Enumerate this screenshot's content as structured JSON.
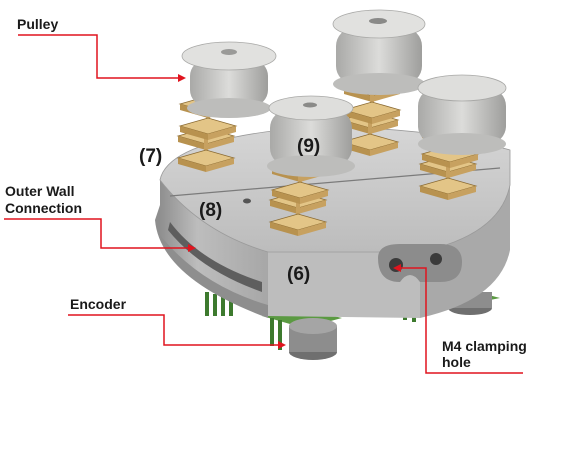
{
  "labels": {
    "pulley": "Pulley",
    "outer_wall_line1": "Outer Wall",
    "outer_wall_line2": "Connection",
    "encoder": "Encoder",
    "m4_line1": "M4 clamping",
    "m4_line2": "hole"
  },
  "part_numbers": {
    "p6": "(6)",
    "p7": "(7)",
    "p8": "(8)",
    "p9": "(9)"
  },
  "colors": {
    "leader_line": "#e0141e",
    "body_grey": "#b9b9b9",
    "pulley_grey": "#c8c8c6",
    "bracket_tan": "#d9b877",
    "pcb_green": "#4f8a3a"
  }
}
